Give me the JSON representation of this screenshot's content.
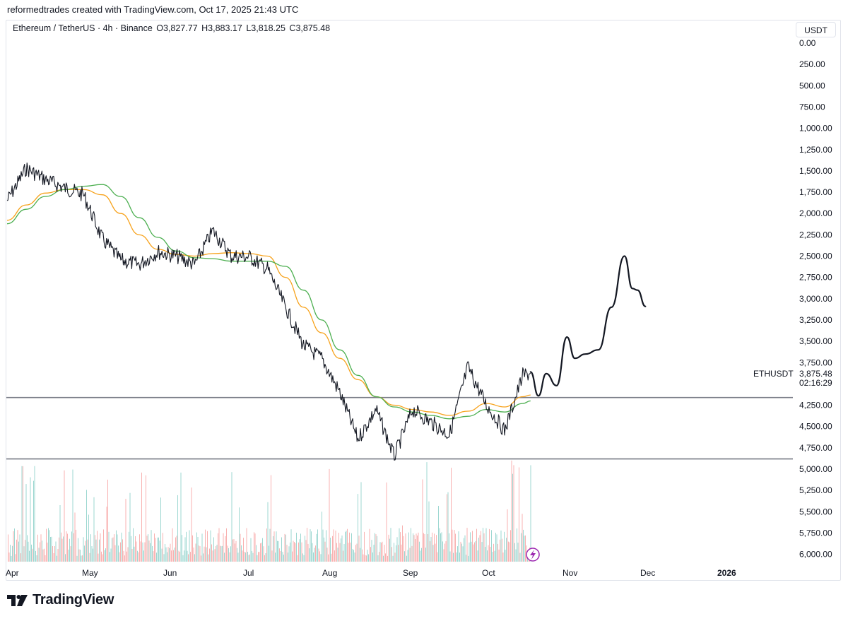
{
  "caption": "reformedtrades created with TradingView.com, Oct 17, 2025 21:43 UTC",
  "legend": {
    "symbol": "Ethereum / TetherUS · 4h · Binance",
    "open": "O3,827.77",
    "high": "H3,883.17",
    "low": "L3,818.25",
    "close": "C3,875.48"
  },
  "currency": "USDT",
  "ticker": {
    "symbol": "ETHUSDT",
    "price": "3,875.48",
    "countdown": "02:16:29"
  },
  "brand": {
    "name": "TradingView",
    "logo_icon": "tradingview-logo-icon"
  },
  "colors": {
    "price": "#131722",
    "ma_fast": "#f7a21b",
    "ma_slow": "#4caf50",
    "volume_up": "#26a69a",
    "volume_down": "#ef5350",
    "level_line": "#787b86",
    "lightning": "#9c27b0"
  },
  "chart_data": {
    "type": "line",
    "x_ticks": [
      "Apr",
      "May",
      "Jun",
      "Jul",
      "Aug",
      "Sep",
      "Oct",
      "Nov",
      "Dec",
      "2026"
    ],
    "y_ticks": [
      "0.00",
      "250.00",
      "500.00",
      "750.00",
      "1,000.00",
      "1,250.00",
      "1,500.00",
      "1,750.00",
      "2,000.00",
      "2,250.00",
      "2,500.00",
      "2,750.00",
      "3,000.00",
      "3,250.00",
      "3,500.00",
      "3,750.00",
      "4,250.00",
      "4,500.00",
      "4,750.00",
      "5,000.00",
      "5,250.00",
      "5,500.00",
      "5,750.00",
      "6,000.00"
    ],
    "y_axis_inverted": true,
    "price_line_x": [
      "Apr 1",
      "Apr 8",
      "Apr 15",
      "Apr 22",
      "Apr 29",
      "May 6",
      "May 13",
      "May 20",
      "May 27",
      "Jun 3",
      "Jun 10",
      "Jun 17",
      "Jun 24",
      "Jul 1",
      "Jul 8",
      "Jul 15",
      "Jul 22",
      "Jul 29",
      "Aug 5",
      "Aug 12",
      "Aug 19",
      "Aug 26",
      "Sep 2",
      "Sep 9",
      "Sep 16",
      "Sep 23",
      "Sep 30",
      "Oct 7",
      "Oct 14",
      "Oct 17"
    ],
    "series": [
      {
        "name": "ETHUSDT",
        "values": [
          1850,
          1470,
          1600,
          1700,
          1780,
          2300,
          2550,
          2600,
          2450,
          2500,
          2600,
          2200,
          2500,
          2510,
          2650,
          3100,
          3550,
          3700,
          4100,
          4650,
          4300,
          4850,
          4300,
          4450,
          4600,
          3800,
          4250,
          4550,
          3900,
          3875
        ]
      },
      {
        "values": [
          2080,
          1900,
          1760,
          1720,
          1720,
          1780,
          2000,
          2250,
          2420,
          2480,
          2500,
          2470,
          2460,
          2470,
          2500,
          2750,
          3100,
          3400,
          3700,
          3950,
          4150,
          4250,
          4300,
          4330,
          4370,
          4320,
          4230,
          4270,
          4150,
          4130
        ]
      },
      {
        "values": [
          2120,
          1950,
          1800,
          1720,
          1680,
          1660,
          1800,
          2050,
          2280,
          2440,
          2520,
          2530,
          2560,
          2560,
          2560,
          2620,
          2900,
          3250,
          3600,
          3900,
          4150,
          4270,
          4330,
          4370,
          4410,
          4380,
          4300,
          4330,
          4230,
          4200
        ]
      }
    ],
    "projection": {
      "x": [
        "Oct 17",
        "Oct 20",
        "Oct 23",
        "Oct 27",
        "Oct 31",
        "Nov 3",
        "Nov 7",
        "Nov 12",
        "Nov 17",
        "Nov 22",
        "Nov 25",
        "Nov 27",
        "Nov 30"
      ],
      "values": [
        3860,
        4140,
        3880,
        4020,
        3450,
        3700,
        3650,
        3600,
        3100,
        2500,
        2880,
        2900,
        3090
      ]
    },
    "horizontal_levels": [
      4160,
      4880
    ]
  }
}
